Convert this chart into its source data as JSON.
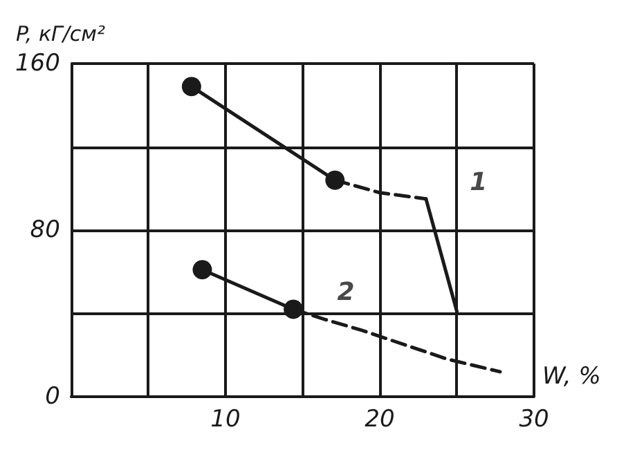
{
  "chart_data": {
    "type": "line",
    "xlabel": "W, %",
    "ylabel": "P, кГ/см²",
    "xlim": [
      0,
      30
    ],
    "ylim": [
      0,
      160
    ],
    "xticks": [
      {
        "value": 0,
        "label": null
      },
      {
        "value": 5,
        "label": null
      },
      10,
      {
        "value": 15,
        "label": null
      },
      20,
      {
        "value": 25,
        "label": null
      },
      30
    ],
    "yticks": [
      0,
      {
        "value": 40,
        "label": null
      },
      80,
      {
        "value": 120,
        "label": null
      },
      160
    ],
    "grid": true,
    "series": [
      {
        "color": "#1a1a1a",
        "x": [
          7.8,
          17.1
        ],
        "values": [
          149,
          104
        ],
        "marker": "circle",
        "line_style": "solid"
      },
      {
        "color": "#1a1a1a",
        "x": [
          17.1,
          20,
          23
        ],
        "values": [
          104,
          98,
          95
        ],
        "marker": "none",
        "line_style": "dashed"
      },
      {
        "color": "#1a1a1a",
        "x": [
          23,
          25
        ],
        "values": [
          95,
          41
        ],
        "marker": "none",
        "line_style": "solid"
      },
      {
        "color": "#1a1a1a",
        "x": [
          8.5,
          14.4
        ],
        "values": [
          61,
          42
        ],
        "marker": "circle",
        "line_style": "solid"
      },
      {
        "color": "#1a1a1a",
        "x": [
          14.4,
          16.5,
          18.8,
          24.4,
          27.8
        ],
        "values": [
          42,
          37,
          32,
          18,
          12
        ],
        "marker": "none",
        "line_style": "dashed"
      }
    ],
    "annotations": [
      {
        "text": "1",
        "x": 23,
        "y": 95
      },
      {
        "text": "2",
        "x": 14.4,
        "y": 42
      }
    ]
  }
}
